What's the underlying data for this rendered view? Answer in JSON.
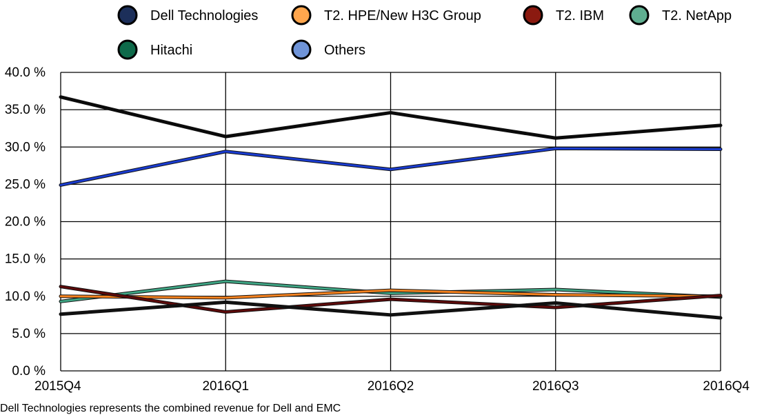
{
  "chart_data": {
    "type": "line",
    "title": "",
    "xlabel": "",
    "ylabel": "",
    "categories": [
      "2015Q4",
      "2016Q1",
      "2016Q2",
      "2016Q3",
      "2016Q4"
    ],
    "yticks": [
      "0.0 %",
      "5.0 %",
      "10.0 %",
      "15.0 %",
      "20.0 %",
      "25.0 %",
      "30.0 %",
      "35.0 %",
      "40.0 %"
    ],
    "ylim": [
      0,
      40
    ],
    "grid": true,
    "legend_position": "top",
    "series": [
      {
        "name": "Dell Technologies",
        "color": "#0a0a0a",
        "legend_color": "#1c2f5a",
        "values": [
          36.7,
          31.4,
          34.6,
          31.2,
          32.9
        ]
      },
      {
        "name": "T2. HPE/New H3C Group",
        "color": "#f5821f",
        "legend_color": "#ffa64d",
        "values": [
          10.0,
          9.8,
          10.8,
          10.2,
          10.0
        ]
      },
      {
        "name": "T2. IBM",
        "color": "#5c0a0a",
        "legend_color": "#8b1a10",
        "values": [
          11.3,
          7.9,
          9.6,
          8.5,
          10.1
        ]
      },
      {
        "name": "T2. NetApp",
        "color": "#3fa584",
        "legend_color": "#5fae90",
        "values": [
          9.3,
          12.0,
          10.4,
          10.9,
          9.9
        ]
      },
      {
        "name": "Hitachi",
        "color": "#111111",
        "legend_color": "#0e6a4a",
        "values": [
          7.6,
          9.2,
          7.5,
          9.1,
          7.1
        ]
      },
      {
        "name": "Others",
        "color": "#1a3cd0",
        "legend_color": "#6f94d8",
        "values": [
          24.9,
          29.4,
          27.0,
          29.8,
          29.7
        ]
      }
    ]
  },
  "footnote": "Dell Technologies represents the combined revenue for Dell and EMC"
}
